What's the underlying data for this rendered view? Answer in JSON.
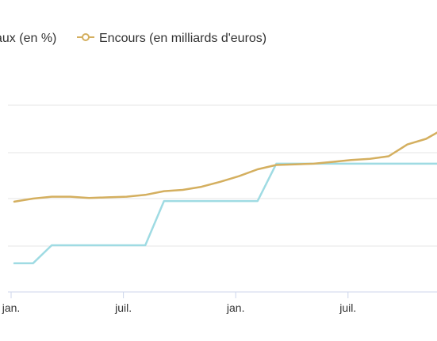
{
  "chart_data": {
    "type": "line",
    "legend": {
      "placement": "top",
      "entries": [
        {
          "label": "aux (en %)",
          "color": "#9fdbe3",
          "marker": "none"
        },
        {
          "label": "Encours (en milliards d'euros)",
          "color": "#d4af5f",
          "marker": "circle"
        }
      ]
    },
    "x_tick_labels": [
      "jan.",
      "juil.",
      "jan.",
      "juil."
    ],
    "grid": true,
    "series": [
      {
        "name": "aux (en %)",
        "color": "#9fdbe3",
        "y": [
          0.46,
          0.46,
          0.75,
          0.75,
          0.75,
          0.75,
          0.75,
          0.75,
          1.46,
          1.46,
          1.46,
          1.46,
          1.46,
          1.46,
          2.06,
          2.06,
          2.06,
          2.06,
          2.06,
          2.06,
          2.06,
          2.06,
          2.06,
          2.06
        ]
      },
      {
        "name": "Encours (en milliards d'euros)",
        "color": "#d4af5f",
        "y": [
          1.45,
          1.5,
          1.53,
          1.53,
          1.51,
          1.52,
          1.53,
          1.56,
          1.62,
          1.64,
          1.69,
          1.77,
          1.86,
          1.97,
          2.04,
          2.05,
          2.06,
          2.09,
          2.12,
          2.14,
          2.18,
          2.37,
          2.46,
          2.63
        ]
      }
    ],
    "ylim": [
      0,
      3
    ]
  }
}
